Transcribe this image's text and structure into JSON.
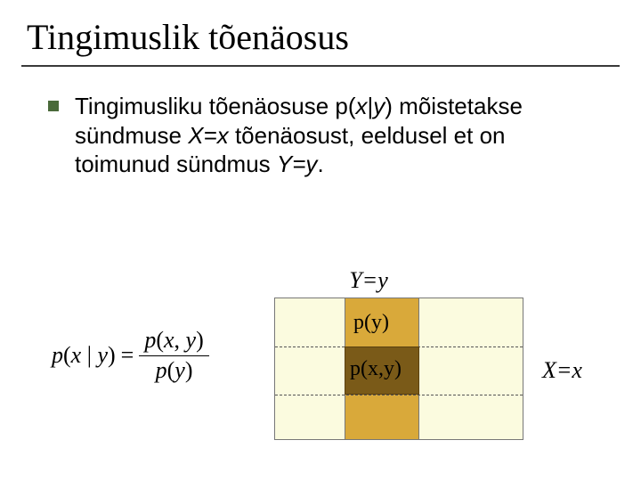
{
  "title": "Tingimuslik tõenäosus",
  "bullet": {
    "color": "#4a6a3a",
    "text_parts": {
      "p1": "Tingimusliku tõenäosuse p(",
      "x": "x",
      "bar": "|",
      "y": "y",
      "p2": ") mõistetakse sündmuse ",
      "Xeq": "X=x",
      "p3": " tõenäosust, eeldusel et on toimunud sündmus ",
      "Yeq": "Y=y",
      "dot": "."
    }
  },
  "formula": {
    "lhs_p": "p",
    "lhs_open": "(",
    "lhs_x": "x",
    "lhs_bar": " | ",
    "lhs_y": "y",
    "lhs_close": ")",
    "eq": " = ",
    "num_p": "p",
    "num_open": "(",
    "num_x": "x",
    "num_comma": ", ",
    "num_y": "y",
    "num_close": ")",
    "den_p": "p",
    "den_open": "(",
    "den_y": "y",
    "den_close": ")"
  },
  "diagram": {
    "top_label": "Y=y",
    "py": "p(y)",
    "pxy": "p(x,y)",
    "side_label": "X=x",
    "colors": {
      "bg": "#fbfbdf",
      "col": "#d9a93a",
      "intersect": "#7a5a18",
      "border": "#777777"
    }
  }
}
